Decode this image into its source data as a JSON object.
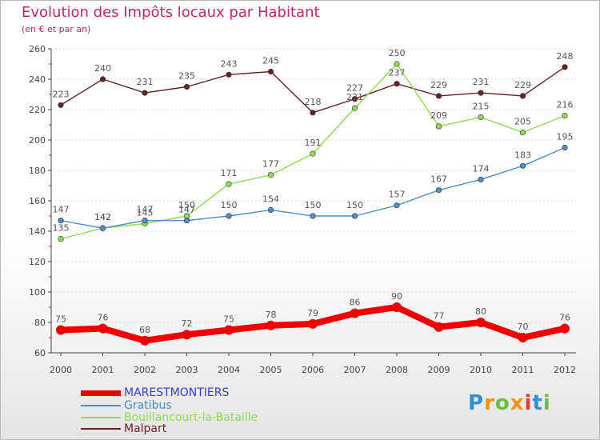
{
  "header": {
    "title": "Evolution des Impôts locaux par Habitant",
    "subtitle": "(en € et par an)"
  },
  "logo": {
    "text": "Proxiti"
  },
  "colors": {
    "title": "#c0256e",
    "axis": "#444444",
    "grid": "#dddddd"
  },
  "chart_data": {
    "type": "line",
    "title": "Evolution des Impôts locaux par Habitant",
    "subtitle": "(en € et par an)",
    "xlabel": "",
    "ylabel": "",
    "x": [
      "2000",
      "2001",
      "2002",
      "2003",
      "2004",
      "2005",
      "2006",
      "2007",
      "2008",
      "2009",
      "2010",
      "2011",
      "2012"
    ],
    "ylim": [
      60,
      260
    ],
    "yticks": [
      60,
      80,
      100,
      120,
      140,
      160,
      180,
      200,
      220,
      240,
      260
    ],
    "grid": true,
    "legend": "bottom-left",
    "series": [
      {
        "name": "MARESTMONTIERS",
        "color": "#ee0000",
        "labelColor": "#555555",
        "values": [
          75,
          76,
          68,
          72,
          75,
          78,
          79,
          86,
          90,
          77,
          80,
          70,
          76
        ]
      },
      {
        "name": "Gratibus",
        "color": "#4f8fc6",
        "labelColor": "#555555",
        "values": [
          147,
          142,
          147,
          147,
          150,
          154,
          150,
          150,
          157,
          167,
          174,
          183,
          195
        ]
      },
      {
        "name": "Bouillancourt-la-Bataille",
        "color": "#8fdb55",
        "labelColor": "#555555",
        "values": [
          135,
          142,
          145,
          150,
          171,
          177,
          191,
          221,
          250,
          209,
          215,
          205,
          216
        ]
      },
      {
        "name": "Malpart",
        "color": "#6b1f23",
        "labelColor": "#555555",
        "values": [
          223,
          240,
          231,
          235,
          243,
          245,
          218,
          227,
          237,
          229,
          231,
          229,
          248
        ]
      }
    ]
  }
}
